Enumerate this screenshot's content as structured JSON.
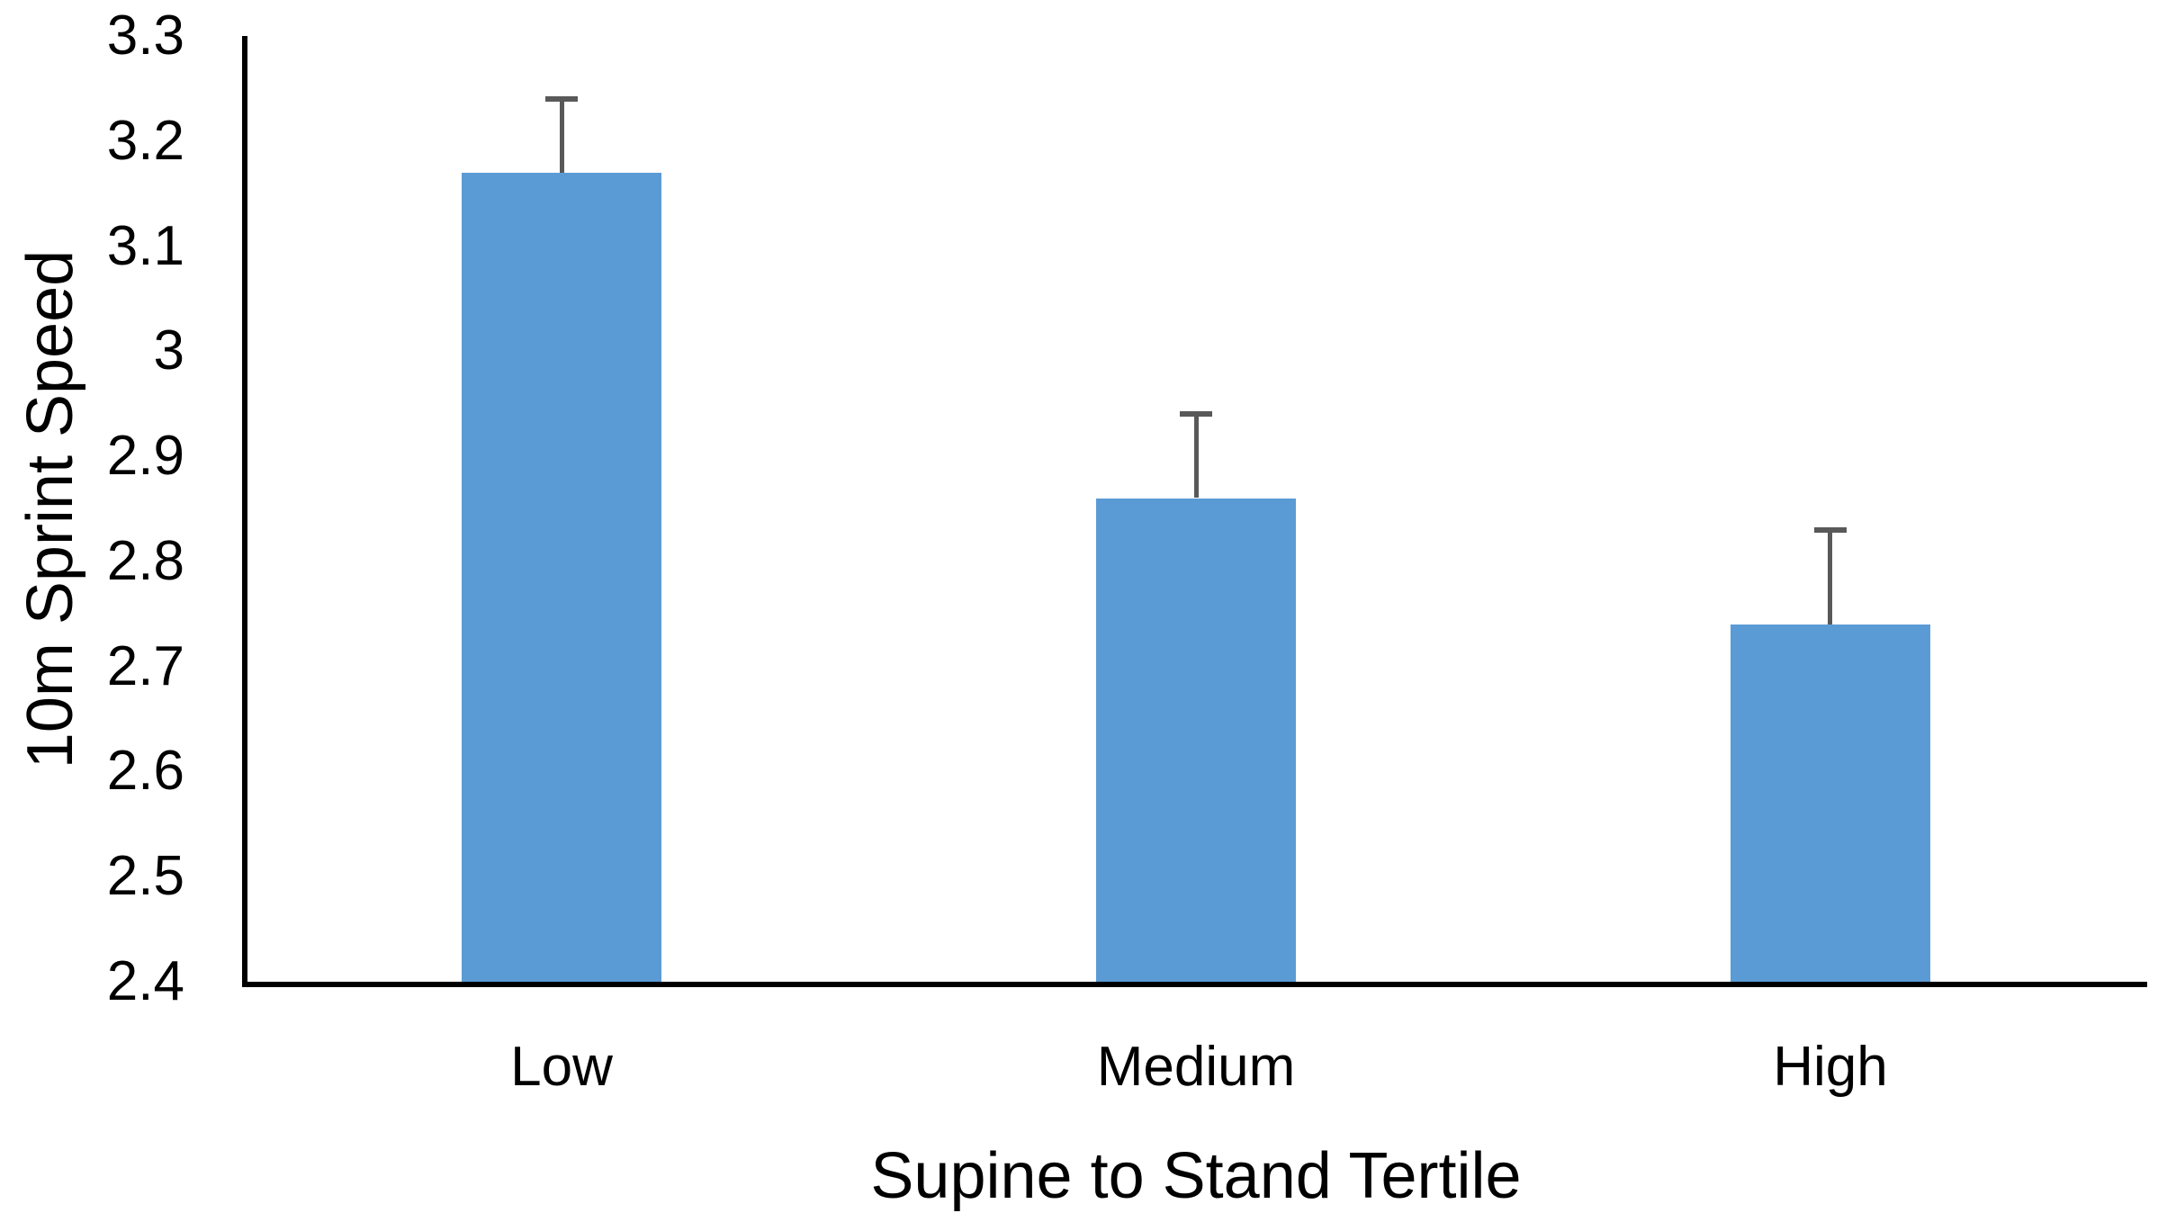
{
  "chart_data": {
    "type": "bar",
    "categories": [
      "Low",
      "Medium",
      "High"
    ],
    "values": [
      3.17,
      2.86,
      2.74
    ],
    "error_plus": [
      0.07,
      0.08,
      0.09
    ],
    "xlabel": "Supine to Stand Tertile",
    "ylabel": "10m Sprint Speed",
    "ylim": [
      2.4,
      3.3
    ],
    "ytick_labels": [
      "3.3",
      "3.2",
      "3.1",
      "3",
      "2.9",
      "2.8",
      "2.7",
      "2.6",
      "2.5",
      "2.4"
    ],
    "grid": false,
    "legend_position": "none",
    "bar_color": "#5B9BD5",
    "error_bar_color": "#595959",
    "axis_color": "#000000",
    "background_color": "#FFFFFF"
  }
}
